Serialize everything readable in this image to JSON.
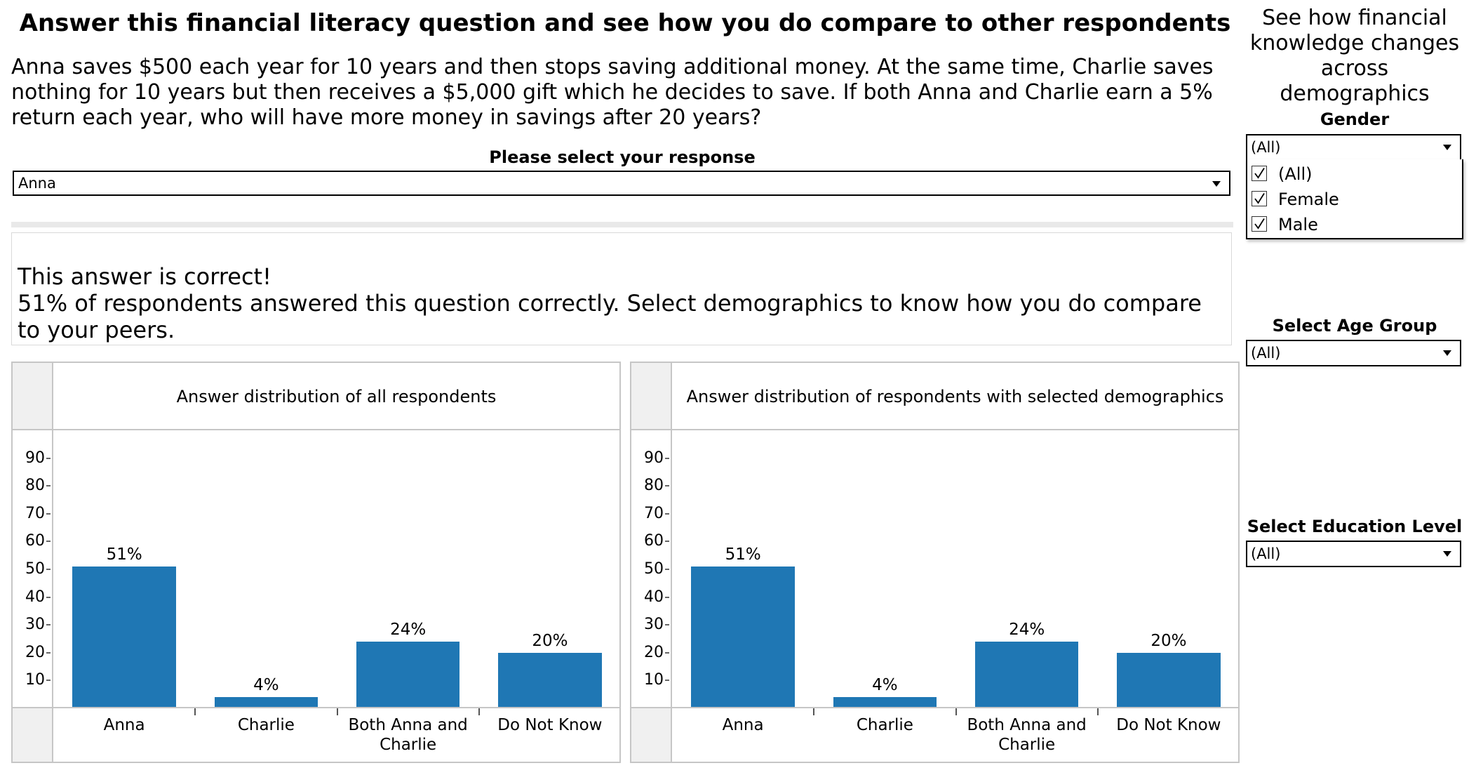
{
  "title": "Answer this financial literacy question and see how you do compare to other respondents",
  "question": "Anna saves $500 each year for 10 years and then stops saving additional money. At the same time, Charlie saves nothing for 10 years but then receives a $5,000 gift which he decides to save. If both Anna and Charlie earn a 5% return each year, who will have more money in savings after 20 years?",
  "response": {
    "label": "Please select your response",
    "selected": "Anna"
  },
  "result": {
    "line1": "This answer is correct!",
    "line2": "51% of respondents answered this question correctly. Select demographics to know how you do compare to your peers."
  },
  "sidebar": {
    "title": "See how financial knowledge changes across demographics",
    "gender": {
      "label": "Gender",
      "selected": "(All)",
      "options": [
        {
          "label": "(All)",
          "checked": true
        },
        {
          "label": "Female",
          "checked": true
        },
        {
          "label": "Male",
          "checked": true
        }
      ]
    },
    "age": {
      "label": "Select Age Group",
      "selected": "(All)"
    },
    "education": {
      "label": "Select Education Level",
      "selected": "(All)"
    }
  },
  "chart_data": [
    {
      "type": "bar",
      "title": "Answer distribution of all respondents",
      "categories": [
        "Anna",
        "Charlie",
        "Both Anna and Charlie",
        "Do Not Know"
      ],
      "values": [
        51,
        4,
        24,
        20
      ],
      "value_labels": [
        "51%",
        "4%",
        "24%",
        "20%"
      ],
      "yticks": [
        10,
        20,
        30,
        40,
        50,
        60,
        70,
        80,
        90
      ],
      "ylim": [
        0,
        100
      ],
      "color": "#1f77b4"
    },
    {
      "type": "bar",
      "title": "Answer distribution of respondents with selected demographics",
      "categories": [
        "Anna",
        "Charlie",
        "Both Anna and Charlie",
        "Do Not Know"
      ],
      "values": [
        51,
        4,
        24,
        20
      ],
      "value_labels": [
        "51%",
        "4%",
        "24%",
        "20%"
      ],
      "yticks": [
        10,
        20,
        30,
        40,
        50,
        60,
        70,
        80,
        90
      ],
      "ylim": [
        0,
        100
      ],
      "color": "#1f77b4"
    }
  ]
}
